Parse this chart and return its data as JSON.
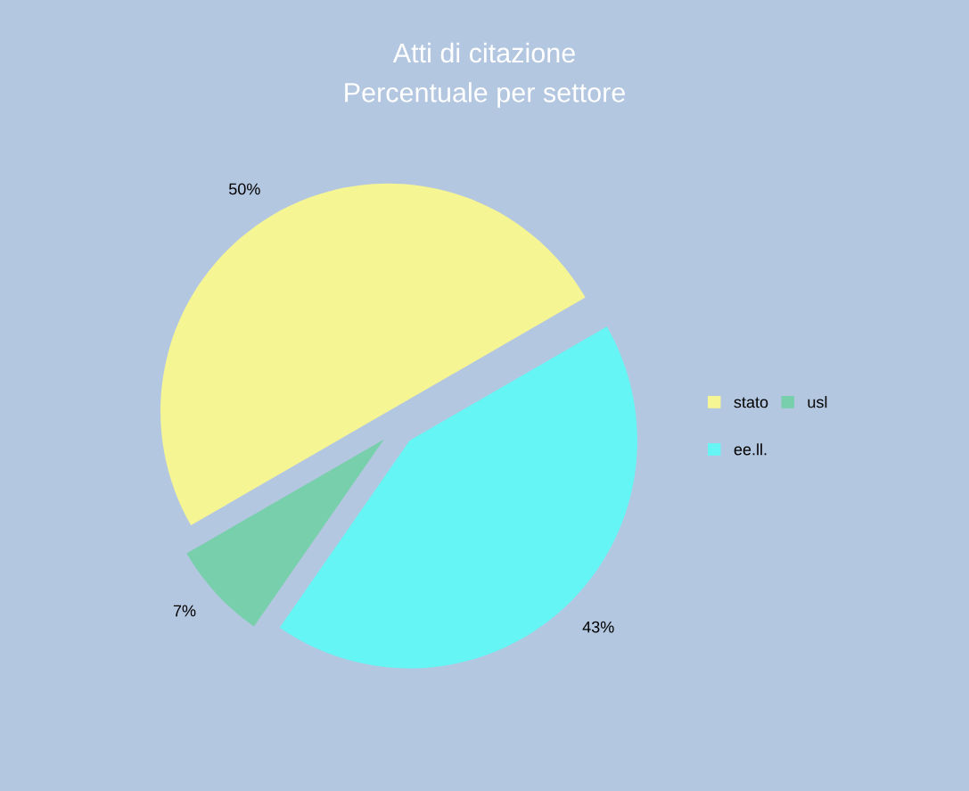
{
  "chart_data": {
    "type": "pie",
    "title": "Atti di citazione",
    "subtitle": "Percentuale per settore",
    "categories": [
      "stato",
      "ee.ll.",
      "usl"
    ],
    "values": [
      50,
      43,
      7
    ],
    "colors": [
      "#f5f594",
      "#66f5f5",
      "#77cfab"
    ],
    "value_labels": [
      "50%",
      "43%",
      "7%"
    ],
    "legend": "right"
  }
}
